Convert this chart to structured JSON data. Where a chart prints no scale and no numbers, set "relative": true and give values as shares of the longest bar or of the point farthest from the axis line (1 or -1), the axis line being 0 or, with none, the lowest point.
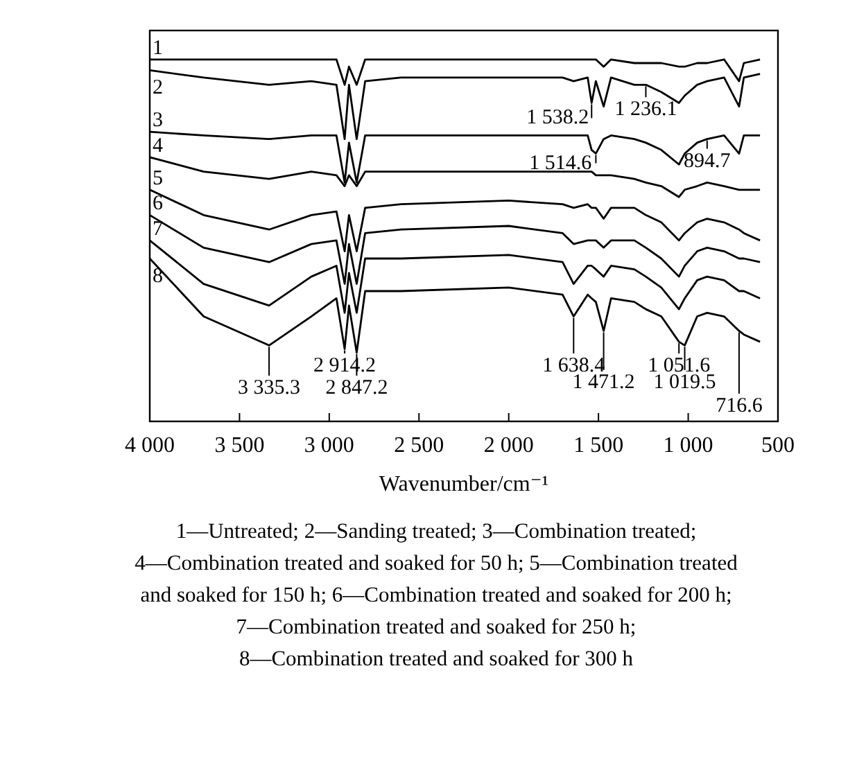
{
  "chart_data": {
    "type": "line",
    "relative": true,
    "xlabel": "Wavenumber/cm⁻¹",
    "x": [
      4000,
      3700,
      3335.3,
      3100,
      2960,
      2914.2,
      2890,
      2847.2,
      2800,
      2600,
      2000,
      1700,
      1638.4,
      1560,
      1538.2,
      1514.6,
      1471.2,
      1430,
      1300,
      1236.1,
      1150,
      1051.6,
      1019.5,
      950,
      894.7,
      800,
      716.6,
      690,
      600
    ],
    "xlim": [
      4000,
      500
    ],
    "xticks": [
      {
        "value": 4000,
        "label": "4 000"
      },
      {
        "value": 3500,
        "label": "3 500"
      },
      {
        "value": 3000,
        "label": "3 000"
      },
      {
        "value": 2500,
        "label": "2 500"
      },
      {
        "value": 2000,
        "label": "2 000"
      },
      {
        "value": 1500,
        "label": "1 500"
      },
      {
        "value": 1000,
        "label": "1 000"
      },
      500
    ],
    "marker": "none",
    "line_style": "solid",
    "series": [
      {
        "name": "1",
        "color": "#000000",
        "values": [
          1,
          1,
          1,
          1,
          1,
          0.93,
          0.98,
          0.93,
          1,
          1,
          1,
          1,
          1,
          1,
          1,
          1,
          0.98,
          1,
          0.99,
          0.99,
          0.99,
          0.98,
          0.98,
          0.99,
          0.99,
          1,
          0.94,
          0.99,
          1
        ]
      },
      {
        "name": "2",
        "color": "#000000",
        "values": [
          0.97,
          0.95,
          0.93,
          0.94,
          0.93,
          0.78,
          0.93,
          0.78,
          0.94,
          0.95,
          0.95,
          0.95,
          0.94,
          0.95,
          0.88,
          0.94,
          0.87,
          0.95,
          0.93,
          0.93,
          0.91,
          0.88,
          0.9,
          0.93,
          0.94,
          0.95,
          0.87,
          0.95,
          0.96
        ]
      },
      {
        "name": "3",
        "color": "#000000",
        "values": [
          0.8,
          0.79,
          0.78,
          0.79,
          0.79,
          0.66,
          0.77,
          0.66,
          0.79,
          0.79,
          0.79,
          0.79,
          0.79,
          0.79,
          0.75,
          0.74,
          0.78,
          0.79,
          0.78,
          0.77,
          0.75,
          0.71,
          0.74,
          0.77,
          0.78,
          0.79,
          0.74,
          0.79,
          0.79
        ]
      },
      {
        "name": "4",
        "color": "#000000",
        "values": [
          0.73,
          0.69,
          0.67,
          0.69,
          0.68,
          0.65,
          0.68,
          0.65,
          0.69,
          0.69,
          0.69,
          0.69,
          0.69,
          0.69,
          0.69,
          0.68,
          0.68,
          0.68,
          0.67,
          0.66,
          0.65,
          0.62,
          0.64,
          0.65,
          0.66,
          0.65,
          0.64,
          0.64,
          0.64
        ]
      },
      {
        "name": "5",
        "color": "#000000",
        "values": [
          0.64,
          0.57,
          0.53,
          0.57,
          0.58,
          0.47,
          0.57,
          0.47,
          0.59,
          0.6,
          0.61,
          0.6,
          0.59,
          0.6,
          0.59,
          0.59,
          0.56,
          0.59,
          0.59,
          0.57,
          0.55,
          0.5,
          0.52,
          0.55,
          0.56,
          0.55,
          0.53,
          0.52,
          0.5
        ]
      },
      {
        "name": "6",
        "color": "#000000",
        "values": [
          0.57,
          0.48,
          0.44,
          0.49,
          0.5,
          0.38,
          0.49,
          0.38,
          0.52,
          0.53,
          0.54,
          0.52,
          0.49,
          0.5,
          0.5,
          0.5,
          0.48,
          0.5,
          0.5,
          0.48,
          0.45,
          0.4,
          0.43,
          0.47,
          0.48,
          0.47,
          0.45,
          0.45,
          0.44
        ]
      },
      {
        "name": "7",
        "color": "#000000",
        "values": [
          0.5,
          0.38,
          0.32,
          0.4,
          0.43,
          0.3,
          0.41,
          0.3,
          0.45,
          0.45,
          0.46,
          0.44,
          0.38,
          0.43,
          0.43,
          0.42,
          0.4,
          0.43,
          0.42,
          0.4,
          0.37,
          0.31,
          0.34,
          0.39,
          0.4,
          0.39,
          0.36,
          0.36,
          0.34
        ]
      },
      {
        "name": "8",
        "color": "#000000",
        "values": [
          0.45,
          0.29,
          0.21,
          0.29,
          0.34,
          0.2,
          0.32,
          0.19,
          0.36,
          0.36,
          0.37,
          0.35,
          0.29,
          0.35,
          0.34,
          0.33,
          0.25,
          0.34,
          0.33,
          0.31,
          0.29,
          0.22,
          0.21,
          0.29,
          0.3,
          0.29,
          0.25,
          0.24,
          0.22
        ]
      }
    ],
    "annotations": [
      {
        "text": "1 538.2",
        "x": 1538.2,
        "y": 0.88
      },
      {
        "text": "1 236.1",
        "x": 1236.1,
        "y": 0.93
      },
      {
        "text": "1 514.6",
        "x": 1514.6,
        "y": 0.74
      },
      {
        "text": "894.7",
        "x": 894.7,
        "y": 0.78
      },
      {
        "text": "2 914.2",
        "x": 2914.2,
        "y": 0.2
      },
      {
        "text": "1 638.4",
        "x": 1638.4,
        "y": 0.29
      },
      {
        "text": "1 051.6",
        "x": 1051.6,
        "y": 0.22
      },
      {
        "text": "3 335.3",
        "x": 3335.3,
        "y": 0.21
      },
      {
        "text": "2 847.2",
        "x": 2847.2,
        "y": 0.19
      },
      {
        "text": "1 471.2",
        "x": 1471.2,
        "y": 0.25
      },
      {
        "text": "1 019.5",
        "x": 1019.5,
        "y": 0.21
      },
      {
        "text": "716.6",
        "x": 716.6,
        "y": 0.25
      },
      "1—Untreated; 2—Sanding treated; 3—Combination treated;",
      "4—Combination treated and soaked for 50 h; 5—Combination treated",
      "and soaked for 150 h; 6—Combination treated and soaked for 200 h;",
      "7—Combination treated and soaked for 250 h;",
      "8—Combination treated and soaked for 300 h"
    ]
  }
}
